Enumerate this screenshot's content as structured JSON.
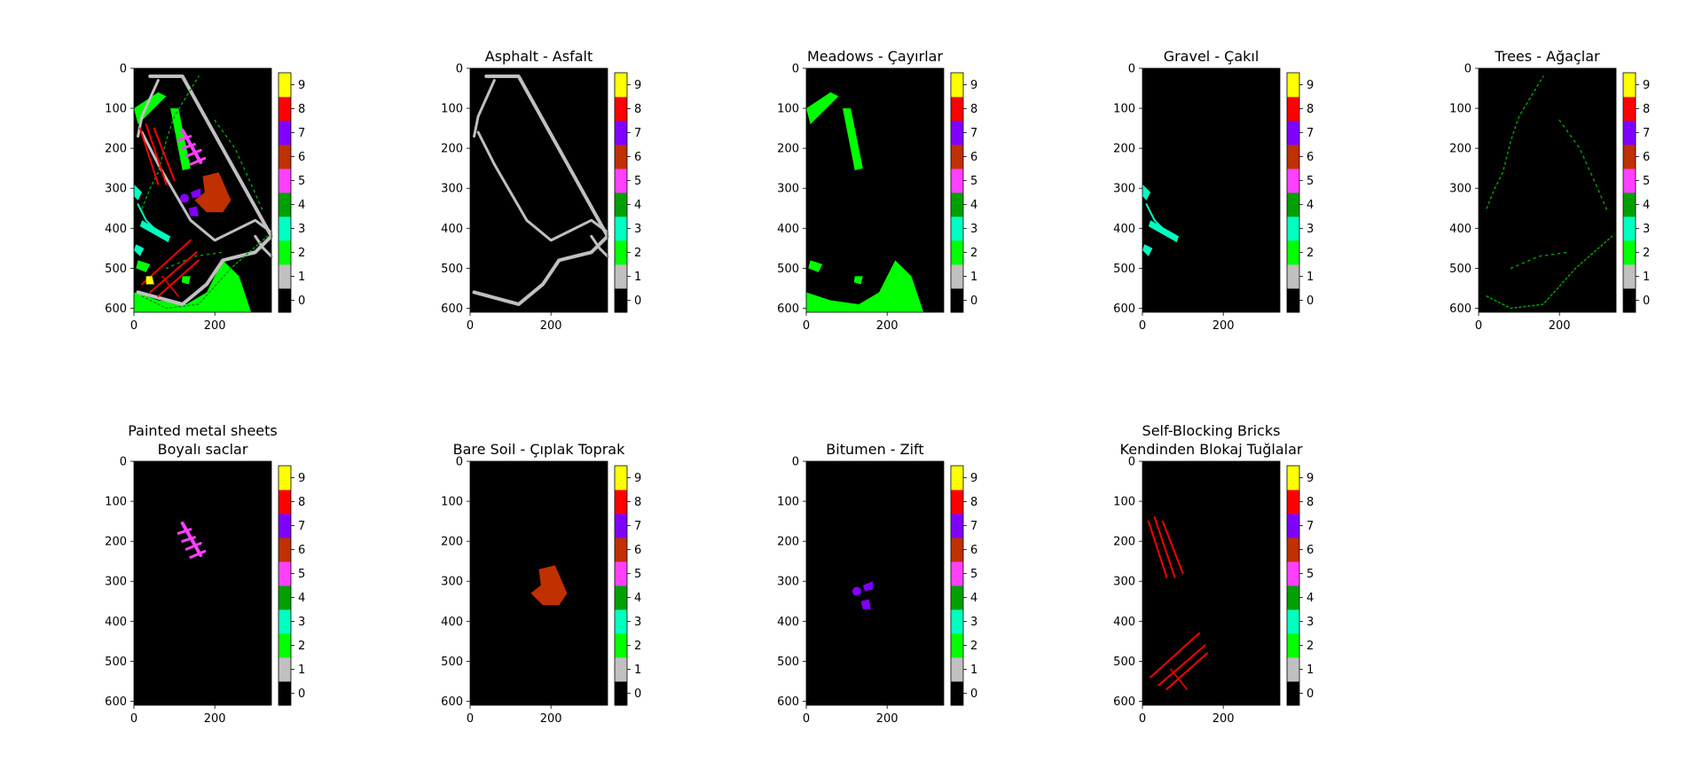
{
  "figure": {
    "grid": false,
    "layout": "2 rows x 5 columns",
    "image_size": [
      610,
      340
    ]
  },
  "colorbar": {
    "ticks": [
      "0",
      "1",
      "2",
      "3",
      "4",
      "5",
      "6",
      "7",
      "8",
      "9"
    ],
    "colors": [
      "#000000",
      "#c0c0c0",
      "#00ff00",
      "#00ffc0",
      "#00a000",
      "#ff40ff",
      "#c03000",
      "#8000ff",
      "#ff0000",
      "#ffff00"
    ]
  },
  "chart_data": [
    {
      "type": "heatmap",
      "title_lines": [],
      "class_shown": "all",
      "xlim": [
        0,
        340
      ],
      "ylim": [
        610,
        0
      ],
      "x_ticks": [
        "0",
        "200"
      ],
      "y_ticks": [
        "0",
        "100",
        "200",
        "300",
        "400",
        "500",
        "600"
      ],
      "colorbar_range": [
        0,
        9
      ]
    },
    {
      "type": "heatmap",
      "title_lines": [
        "Asphalt - Asfalt"
      ],
      "class_shown": 1,
      "xlim": [
        0,
        340
      ],
      "ylim": [
        610,
        0
      ],
      "x_ticks": [
        "0",
        "200"
      ],
      "y_ticks": [
        "0",
        "100",
        "200",
        "300",
        "400",
        "500",
        "600"
      ],
      "colorbar_range": [
        0,
        9
      ]
    },
    {
      "type": "heatmap",
      "title_lines": [
        "Meadows - Çayırlar"
      ],
      "class_shown": 2,
      "xlim": [
        0,
        340
      ],
      "ylim": [
        610,
        0
      ],
      "x_ticks": [
        "0",
        "200"
      ],
      "y_ticks": [
        "0",
        "100",
        "200",
        "300",
        "400",
        "500",
        "600"
      ],
      "colorbar_range": [
        0,
        9
      ]
    },
    {
      "type": "heatmap",
      "title_lines": [
        "Gravel - Çakıl"
      ],
      "class_shown": 3,
      "xlim": [
        0,
        340
      ],
      "ylim": [
        610,
        0
      ],
      "x_ticks": [
        "0",
        "200"
      ],
      "y_ticks": [
        "0",
        "100",
        "200",
        "300",
        "400",
        "500",
        "600"
      ],
      "colorbar_range": [
        0,
        9
      ]
    },
    {
      "type": "heatmap",
      "title_lines": [
        "Trees - Ağaçlar"
      ],
      "class_shown": 4,
      "xlim": [
        0,
        340
      ],
      "ylim": [
        610,
        0
      ],
      "x_ticks": [
        "0",
        "200"
      ],
      "y_ticks": [
        "0",
        "100",
        "200",
        "300",
        "400",
        "500",
        "600"
      ],
      "colorbar_range": [
        0,
        9
      ]
    },
    {
      "type": "heatmap",
      "title_lines": [
        "Painted metal sheets",
        "Boyalı saclar"
      ],
      "class_shown": 5,
      "xlim": [
        0,
        340
      ],
      "ylim": [
        610,
        0
      ],
      "x_ticks": [
        "0",
        "200"
      ],
      "y_ticks": [
        "0",
        "100",
        "200",
        "300",
        "400",
        "500",
        "600"
      ],
      "colorbar_range": [
        0,
        9
      ]
    },
    {
      "type": "heatmap",
      "title_lines": [
        "Bare Soil - Çıplak Toprak"
      ],
      "class_shown": 6,
      "xlim": [
        0,
        340
      ],
      "ylim": [
        610,
        0
      ],
      "x_ticks": [
        "0",
        "200"
      ],
      "y_ticks": [
        "0",
        "100",
        "200",
        "300",
        "400",
        "500",
        "600"
      ],
      "colorbar_range": [
        0,
        9
      ]
    },
    {
      "type": "heatmap",
      "title_lines": [
        "Bitumen - Zift"
      ],
      "class_shown": 7,
      "xlim": [
        0,
        340
      ],
      "ylim": [
        610,
        0
      ],
      "x_ticks": [
        "0",
        "200"
      ],
      "y_ticks": [
        "0",
        "100",
        "200",
        "300",
        "400",
        "500",
        "600"
      ],
      "colorbar_range": [
        0,
        9
      ]
    },
    {
      "type": "heatmap",
      "title_lines": [
        "Self-Blocking Bricks",
        "Kendinden Blokaj Tuğlalar"
      ],
      "class_shown": 8,
      "xlim": [
        0,
        340
      ],
      "ylim": [
        610,
        0
      ],
      "x_ticks": [
        "0",
        "200"
      ],
      "y_ticks": [
        "0",
        "100",
        "200",
        "300",
        "400",
        "500",
        "600"
      ],
      "colorbar_range": [
        0,
        9
      ]
    }
  ]
}
